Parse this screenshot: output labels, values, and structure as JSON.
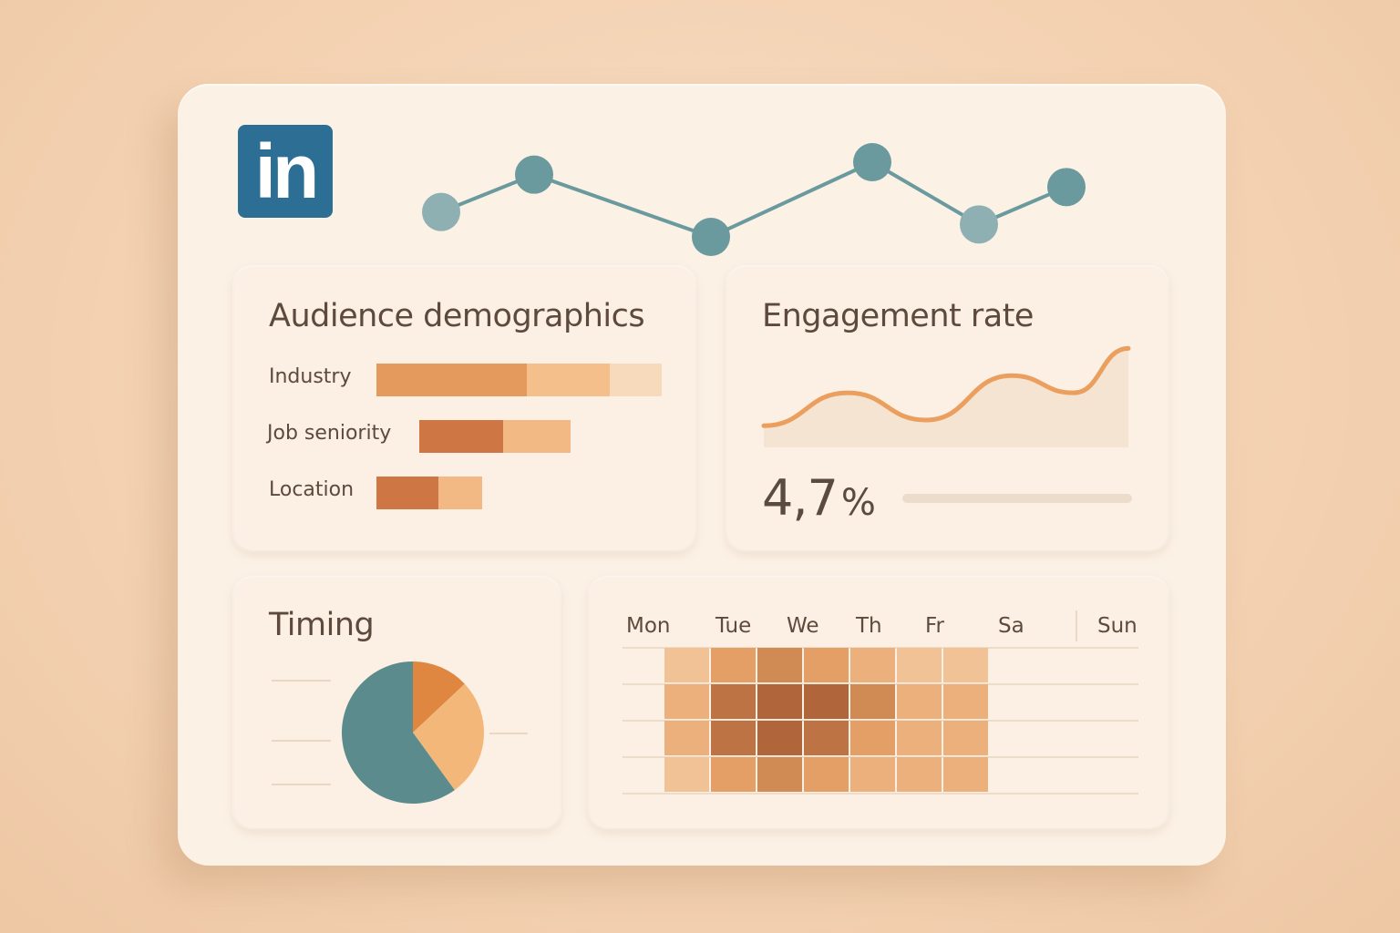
{
  "logo": {
    "text": "in",
    "icon": "linkedin-logo",
    "color": "#2c6e94"
  },
  "trend_chart": {
    "type": "line",
    "values": [
      2,
      5,
      0,
      6,
      1,
      4
    ],
    "color": "#6b9a9e"
  },
  "demographics": {
    "title": "Audience demographics",
    "rows": [
      {
        "label": "Industry",
        "segments": [
          165,
          91,
          57
        ],
        "colors": [
          "#e49a5d",
          "#f4bf8a",
          "#f7d9bb"
        ]
      },
      {
        "label": "Job seniority",
        "segments": [
          92,
          74
        ],
        "colors": [
          "#cf7645",
          "#f2b985"
        ]
      },
      {
        "label": "Location",
        "segments": [
          68,
          48
        ],
        "colors": [
          "#cf7645",
          "#f2b985"
        ]
      }
    ]
  },
  "engagement": {
    "title": "Engagement rate",
    "value": "4,7",
    "unit": "%",
    "chart_data": {
      "type": "area",
      "values": [
        1.0,
        3.3,
        1.4,
        4.5,
        3.3,
        6.4
      ],
      "color": "#eb9f5e"
    }
  },
  "timing": {
    "title": "Timing",
    "chart_data": {
      "type": "pie",
      "values": [
        60,
        13,
        27
      ],
      "colors": [
        "#5b8b8c",
        "#df8640",
        "#f3b77a"
      ]
    }
  },
  "heatmap": {
    "days": [
      "Mon",
      "Tue",
      "We",
      "Th",
      "Fr",
      "Sa",
      "Sun"
    ],
    "chart_data": {
      "type": "heatmap",
      "rows": [
        [
          1,
          3,
          4,
          3,
          2,
          1,
          0
        ],
        [
          2,
          5,
          6,
          6,
          4,
          2,
          1
        ],
        [
          2,
          5,
          6,
          5,
          3,
          2,
          1
        ],
        [
          1,
          3,
          4,
          3,
          2,
          2,
          1
        ]
      ],
      "palette": [
        "#f7d7b6",
        "#f2c297",
        "#ecb07d",
        "#e39f66",
        "#d08a53",
        "#bd7344",
        "#b1653a"
      ]
    }
  }
}
